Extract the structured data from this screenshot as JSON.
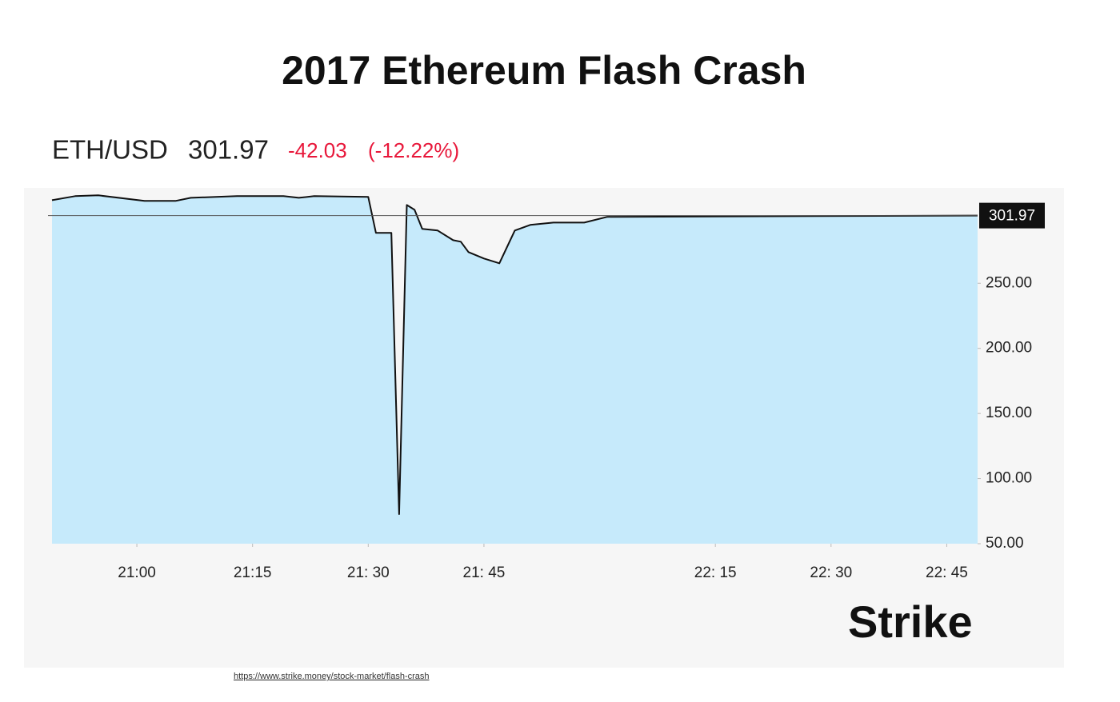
{
  "chart_data": {
    "type": "area",
    "title": "2017 Ethereum Flash Crash",
    "symbol": "ETH/USD",
    "last": 301.97,
    "change": "-42.03",
    "change_pct": "(-12.22%)",
    "x": [
      "20:49",
      "20:52",
      "20:55",
      "21:01",
      "21:05",
      "21:07",
      "21:13",
      "21:19",
      "21:21",
      "21:23",
      "21:30",
      "21:31",
      "21:33",
      "21:34",
      "21:35",
      "21:36",
      "21:37",
      "21:39",
      "21:41",
      "21:42",
      "21:43",
      "21:45",
      "21:47",
      "21:49",
      "21:51",
      "21:54",
      "21:58",
      "22:01",
      "22:49"
    ],
    "series": [
      {
        "color": "#111111",
        "fill": "#c6eafb",
        "values": [
          313.8,
          316.9,
          317.5,
          313.2,
          313.2,
          315.6,
          316.9,
          316.9,
          315.6,
          316.9,
          316.3,
          288.7,
          288.7,
          72.7,
          310.1,
          306.4,
          291.7,
          290.5,
          283.1,
          281.9,
          273.9,
          269.0,
          265.3,
          290.5,
          294.8,
          296.6,
          296.6,
          301.0,
          301.97
        ]
      }
    ],
    "xlim": [
      "20:49",
      "22:49"
    ],
    "xticks": [
      {
        "value": "21:00",
        "label": "21:00"
      },
      {
        "value": "21:15",
        "label": "21:15"
      },
      {
        "value": "21:30",
        "label": "21: 30"
      },
      {
        "value": "21:45",
        "label": "21: 45"
      },
      {
        "value": "22:15",
        "label": "22: 15"
      },
      {
        "value": "22:30",
        "label": "22: 30"
      },
      {
        "value": "22:45",
        "label": "22: 45"
      }
    ],
    "ylim": [
      50,
      322
    ],
    "yticks": [
      {
        "value": 50,
        "label": "50.00"
      },
      {
        "value": 100,
        "label": "100.00"
      },
      {
        "value": 150,
        "label": "150.00"
      },
      {
        "value": 200,
        "label": "200.00"
      },
      {
        "value": 250,
        "label": "250.00"
      }
    ],
    "logo": "Strike",
    "source": "https://www.strike.money/stock-market/flash-crash"
  }
}
